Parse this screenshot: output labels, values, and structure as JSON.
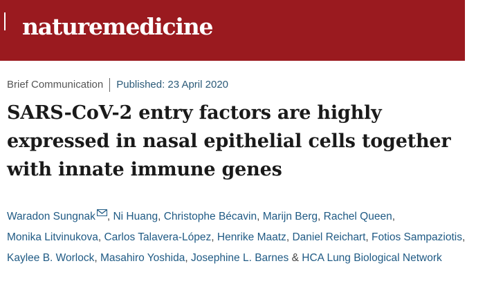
{
  "header": {
    "brand_word1": "nature",
    "brand_word2": "medicine",
    "brand_color": "#9a1a1f"
  },
  "article": {
    "type": "Brief Communication",
    "published": "Published: 23 April 2020",
    "title": "SARS-CoV-2 entry factors are highly expressed in nasal epithelial cells together with innate immune genes",
    "authors": [
      "Waradon Sungnak",
      "Ni Huang",
      "Christophe Bécavin",
      "Marijn Berg",
      "Rachel Queen",
      "Monika Litvinukova",
      "Carlos Talavera-López",
      "Henrike Maatz",
      "Daniel Reichart",
      "Fotios Sampaziotis",
      "Kaylee B. Worlock",
      "Masahiro Yoshida",
      "Josephine L. Barnes",
      "HCA Lung Biological Network"
    ],
    "author_separator": ", ",
    "author_conjunction": " & ",
    "email_icon": "envelope-icon"
  }
}
